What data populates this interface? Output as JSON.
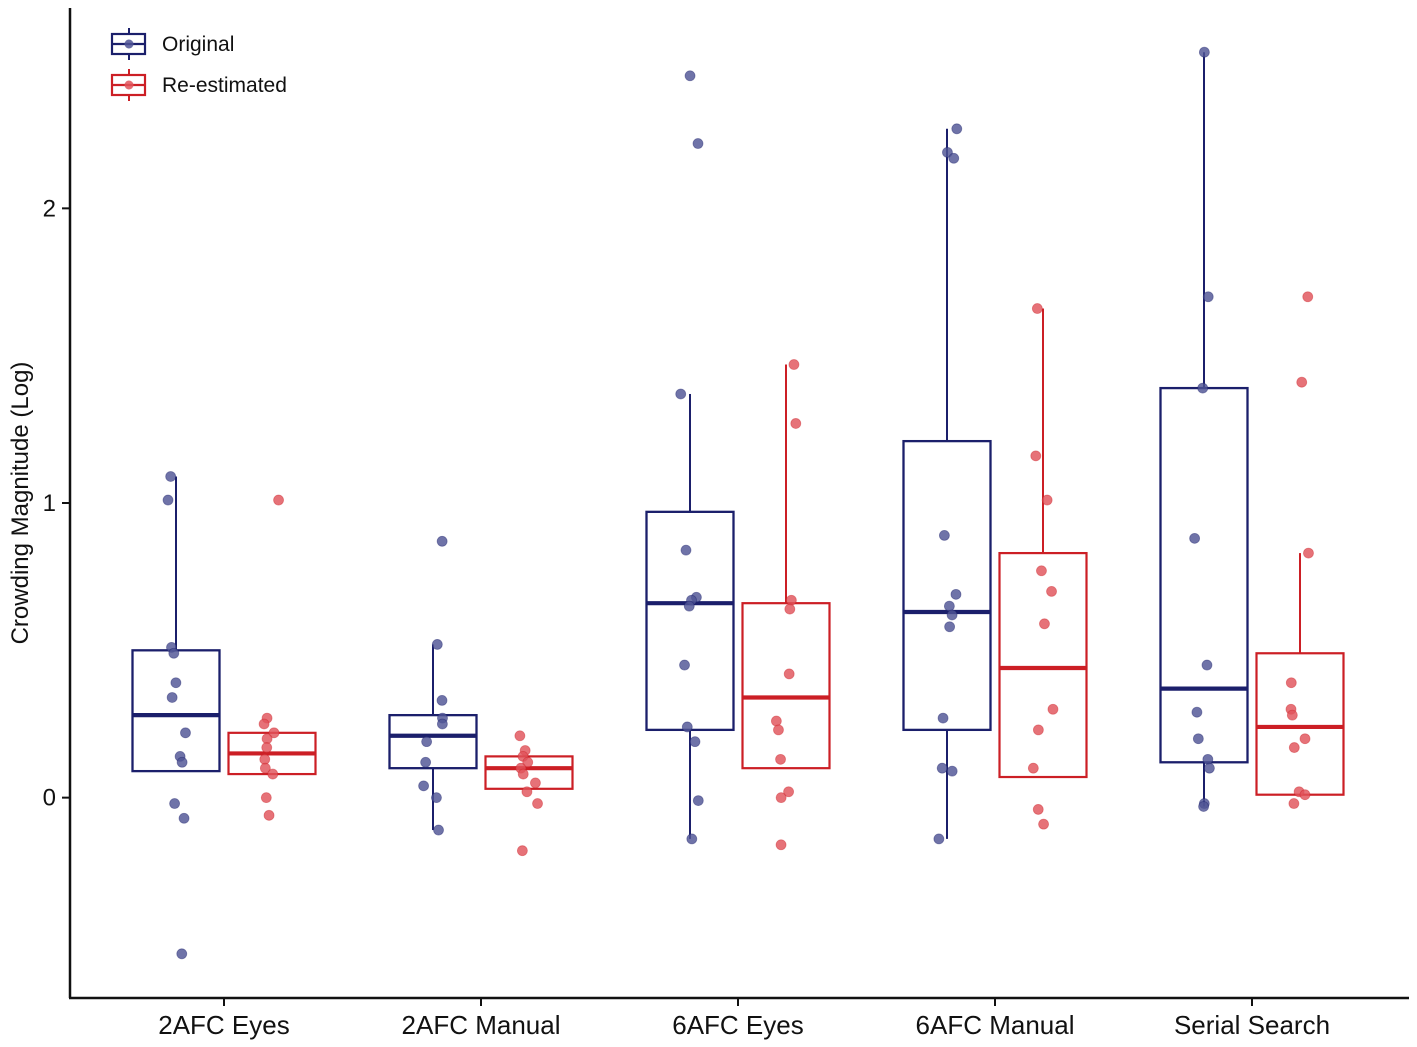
{
  "chart_data": {
    "type": "box",
    "title": "",
    "xlabel": "",
    "ylabel": "Crowding Magnitude (Log)",
    "ylim": [
      -0.68,
      2.68
    ],
    "yticks": [
      0,
      1,
      2
    ],
    "categories": [
      "2AFC Eyes",
      "2AFC Manual",
      "6AFC Eyes",
      "6AFC Manual",
      "Serial Search"
    ],
    "legend": {
      "placement": "top-left"
    },
    "series": [
      {
        "name": "Original",
        "color": "#1b1f6b",
        "point_color": "#4f5495",
        "boxes": [
          {
            "q1": 0.09,
            "median": 0.28,
            "q3": 0.5,
            "whisker_low": 0.09,
            "whisker_high": 1.09
          },
          {
            "q1": 0.1,
            "median": 0.21,
            "q3": 0.28,
            "whisker_low": -0.11,
            "whisker_high": 0.52
          },
          {
            "q1": 0.23,
            "median": 0.66,
            "q3": 0.97,
            "whisker_low": -0.14,
            "whisker_high": 1.37
          },
          {
            "q1": 0.23,
            "median": 0.63,
            "q3": 1.21,
            "whisker_low": -0.14,
            "whisker_high": 2.27
          },
          {
            "q1": 0.12,
            "median": 0.37,
            "q3": 1.39,
            "whisker_low": -0.03,
            "whisker_high": 2.53
          }
        ],
        "points": [
          [
            1.09,
            1.01,
            0.51,
            0.49,
            0.39,
            0.34,
            0.22,
            0.14,
            0.12,
            -0.02,
            -0.07,
            -0.53
          ],
          [
            0.87,
            0.52,
            0.33,
            0.27,
            0.25,
            0.19,
            0.12,
            0.04,
            0.0,
            -0.11
          ],
          [
            2.45,
            2.22,
            1.37,
            0.84,
            0.68,
            0.67,
            0.65,
            0.45,
            0.24,
            0.19,
            -0.01,
            -0.14
          ],
          [
            2.27,
            2.19,
            2.17,
            0.89,
            0.69,
            0.65,
            0.62,
            0.58,
            0.27,
            0.1,
            0.09,
            -0.14
          ],
          [
            2.53,
            1.7,
            1.39,
            0.88,
            0.45,
            0.29,
            0.2,
            0.13,
            0.1,
            -0.02,
            -0.03
          ]
        ]
      },
      {
        "name": "Re-estimated",
        "color": "#cc1f25",
        "point_color": "#e0535a",
        "boxes": [
          {
            "q1": 0.08,
            "median": 0.15,
            "q3": 0.22,
            "whisker_low": 0.08,
            "whisker_high": 0.22
          },
          {
            "q1": 0.03,
            "median": 0.1,
            "q3": 0.14,
            "whisker_low": 0.03,
            "whisker_high": 0.14
          },
          {
            "q1": 0.1,
            "median": 0.34,
            "q3": 0.66,
            "whisker_low": 0.1,
            "whisker_high": 1.47
          },
          {
            "q1": 0.07,
            "median": 0.44,
            "q3": 0.83,
            "whisker_low": 0.07,
            "whisker_high": 1.66
          },
          {
            "q1": 0.01,
            "median": 0.24,
            "q3": 0.49,
            "whisker_low": 0.01,
            "whisker_high": 0.83
          }
        ],
        "points": [
          [
            1.01,
            0.27,
            0.25,
            0.22,
            0.2,
            0.17,
            0.13,
            0.1,
            0.08,
            0.0,
            -0.06
          ],
          [
            0.21,
            0.16,
            0.14,
            0.12,
            0.1,
            0.08,
            0.05,
            0.02,
            -0.02,
            -0.18
          ],
          [
            1.47,
            1.27,
            0.67,
            0.64,
            0.42,
            0.26,
            0.23,
            0.13,
            0.02,
            0.0,
            -0.16
          ],
          [
            1.66,
            1.16,
            1.01,
            0.77,
            0.7,
            0.59,
            0.3,
            0.23,
            0.1,
            -0.04,
            -0.09
          ],
          [
            1.7,
            1.41,
            0.83,
            0.39,
            0.3,
            0.28,
            0.2,
            0.17,
            0.02,
            0.01,
            -0.02
          ]
        ]
      }
    ]
  }
}
